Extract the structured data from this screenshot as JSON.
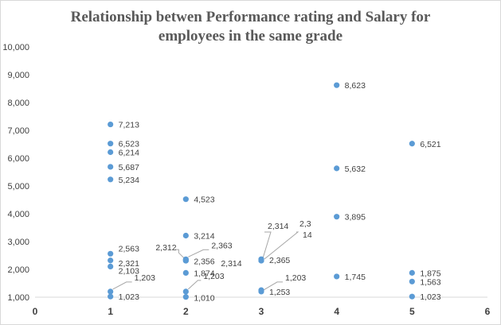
{
  "chart_data": {
    "type": "scatter",
    "title_lines": [
      "Relationship betwen Performance rating and Salary for",
      "employees in the same grade"
    ],
    "xlabel": "",
    "ylabel": "",
    "xlim": [
      0,
      6
    ],
    "ylim": [
      1000,
      10000
    ],
    "x_ticks": [
      0,
      1,
      2,
      3,
      4,
      5,
      6
    ],
    "y_ticks": [
      1000,
      2000,
      3000,
      4000,
      5000,
      6000,
      7000,
      8000,
      9000,
      10000
    ],
    "y_tick_labels": [
      "1,000",
      "2,000",
      "3,000",
      "4,000",
      "5,000",
      "6,000",
      "7,000",
      "8,000",
      "9,000",
      "10,000"
    ],
    "grid": false,
    "legend": "none",
    "marker_color": "#5b9bd5",
    "points": [
      {
        "x": 1,
        "y": 7213,
        "label": "7,213"
      },
      {
        "x": 1,
        "y": 6523,
        "label": "6,523"
      },
      {
        "x": 1,
        "y": 6214,
        "label": "6,214"
      },
      {
        "x": 1,
        "y": 5687,
        "label": "5,687"
      },
      {
        "x": 1,
        "y": 5234,
        "label": "5,234"
      },
      {
        "x": 1,
        "y": 2563,
        "label": "2,563"
      },
      {
        "x": 1,
        "y": 2321,
        "label": "2,321"
      },
      {
        "x": 1,
        "y": 2103,
        "label": "2,103"
      },
      {
        "x": 1,
        "y": 1203,
        "label": "1,203"
      },
      {
        "x": 1,
        "y": 1023,
        "label": "1,023"
      },
      {
        "x": 2,
        "y": 4523,
        "label": "4,523"
      },
      {
        "x": 2,
        "y": 3214,
        "label": "3,214"
      },
      {
        "x": 2,
        "y": 2363,
        "label": "2,363"
      },
      {
        "x": 2,
        "y": 2312,
        "label": "2,312"
      },
      {
        "x": 2,
        "y": 2356,
        "label": "2,356"
      },
      {
        "x": 2,
        "y": 2314,
        "label": "2,314"
      },
      {
        "x": 2,
        "y": 1874,
        "label": "1,874"
      },
      {
        "x": 2,
        "y": 1203,
        "label": "1,203"
      },
      {
        "x": 2,
        "y": 1010,
        "label": "1,010"
      },
      {
        "x": 3,
        "y": 2314,
        "label": "2,314"
      },
      {
        "x": 3,
        "y": 2314,
        "label": "2,3 14"
      },
      {
        "x": 3,
        "y": 2365,
        "label": "2,365"
      },
      {
        "x": 3,
        "y": 1203,
        "label": "1,203"
      },
      {
        "x": 3,
        "y": 1253,
        "label": "1,253"
      },
      {
        "x": 4,
        "y": 8623,
        "label": "8,623"
      },
      {
        "x": 4,
        "y": 5632,
        "label": "5,632"
      },
      {
        "x": 4,
        "y": 3895,
        "label": "3,895"
      },
      {
        "x": 4,
        "y": 1745,
        "label": "1,745"
      },
      {
        "x": 5,
        "y": 6521,
        "label": "6,521"
      },
      {
        "x": 5,
        "y": 1875,
        "label": "1,875"
      },
      {
        "x": 5,
        "y": 1563,
        "label": "1,563"
      },
      {
        "x": 5,
        "y": 1023,
        "label": "1,023"
      }
    ]
  }
}
